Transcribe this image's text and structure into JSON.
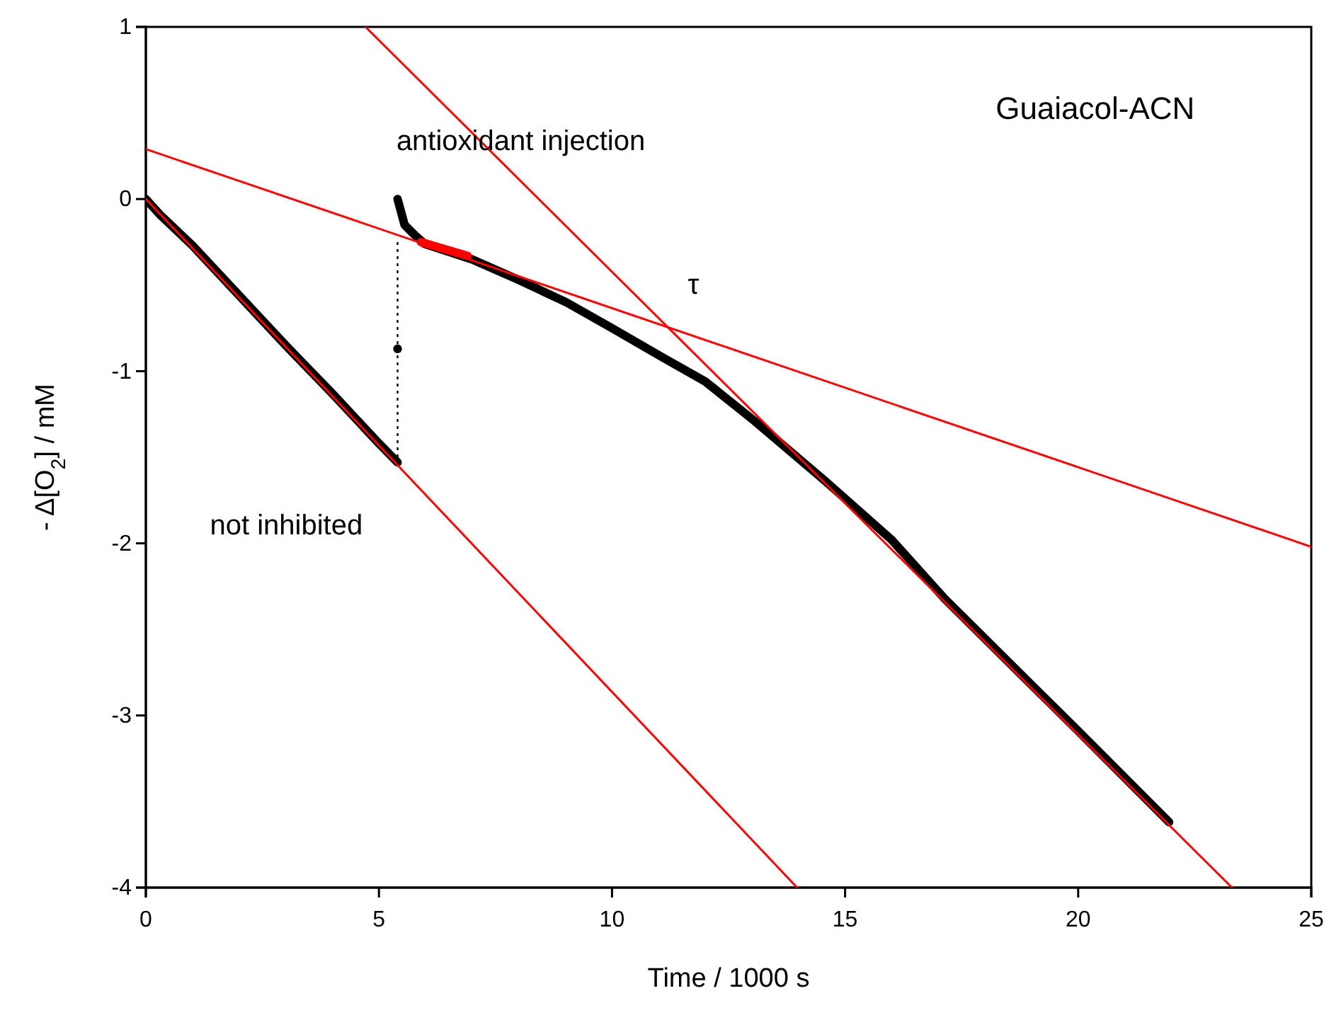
{
  "chart_data": {
    "type": "line",
    "xlabel": "Time / 1000 s",
    "ylabel": "- Δ[O$_{2}$] / mM",
    "xlim": [
      0,
      25
    ],
    "ylim": [
      -4,
      1
    ],
    "xticks": [
      0,
      5,
      10,
      15,
      20,
      25
    ],
    "yticks": [
      -4,
      -3,
      -2,
      -1,
      0,
      1
    ],
    "grid": false,
    "annotations": [
      "Guaiacol-ACN",
      "antioxidant injection",
      "τ",
      "not inhibited"
    ],
    "series": [
      {
        "color": "#000000",
        "x": [
          0,
          0.3,
          1,
          2,
          3,
          4,
          5,
          5.4
        ],
        "values": [
          0,
          -0.09,
          -0.27,
          -0.56,
          -0.85,
          -1.13,
          -1.42,
          -1.53
        ]
      },
      {
        "color": "#000000",
        "x": [
          5.4,
          5.55,
          5.77,
          5.98,
          6.99,
          8,
          9.02,
          10,
          11.15,
          12,
          13.06,
          14.58,
          16,
          17.13,
          18.99,
          20,
          21.95
        ],
        "values": [
          0,
          -0.15,
          -0.21,
          -0.26,
          -0.35,
          -0.47,
          -0.6,
          -0.75,
          -0.93,
          -1.06,
          -1.29,
          -1.64,
          -1.98,
          -2.32,
          -2.82,
          -3.09,
          -3.62
        ]
      },
      {
        "color": "#000000",
        "type": "scatter",
        "marker": "circle",
        "x": [
          5.4
        ],
        "values": [
          -0.87
        ]
      },
      {
        "color": "#000000",
        "line_style": "dotted",
        "x": [
          5.4,
          5.4
        ],
        "values": [
          -0.25,
          -1.53
        ]
      },
      {
        "color": "#ff0000",
        "x": [
          0,
          13.97
        ],
        "values": [
          0,
          -4
        ]
      },
      {
        "color": "#ff0000",
        "x": [
          0,
          25
        ],
        "values": [
          0.29,
          -2.02
        ]
      },
      {
        "color": "#ff0000",
        "x": [
          4.71,
          23.3
        ],
        "values": [
          1,
          -4
        ]
      },
      {
        "color": "#ff0000",
        "x": [
          5.9,
          6.9
        ],
        "values": [
          -0.25,
          -0.33
        ]
      }
    ]
  }
}
